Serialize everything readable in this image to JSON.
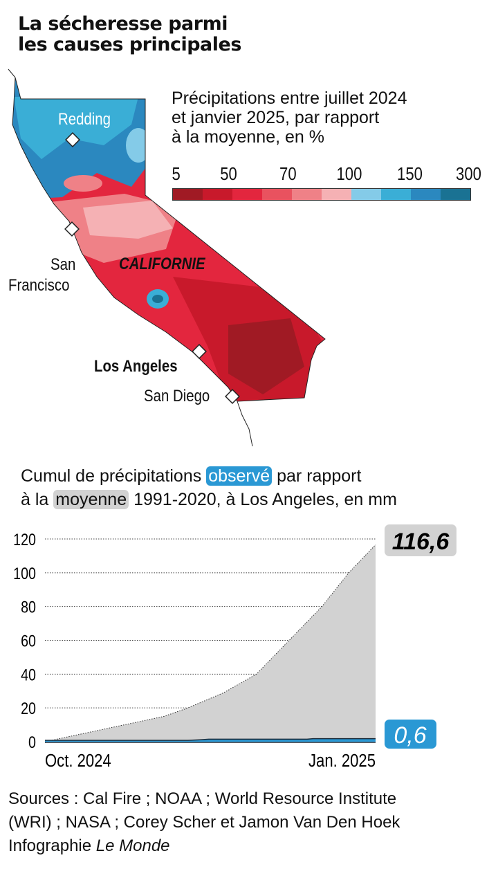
{
  "title": [
    "La sécheresse parmi",
    "les causes principales"
  ],
  "map": {
    "legend_title": [
      "Précipitations entre juillet 2024",
      "et janvier 2025, par rapport",
      "à la moyenne, en %"
    ],
    "legend_ticks": [
      "5",
      "50",
      "70",
      "100",
      "150",
      "300"
    ],
    "legend_colors": [
      "#a01a24",
      "#c8192b",
      "#e3263e",
      "#e9525f",
      "#ef8187",
      "#f5b1b4",
      "#84cbe8",
      "#3aaed6",
      "#2b88bf",
      "#1a7293"
    ],
    "region_label": "CALIFORNIE",
    "cities": {
      "redding": "Redding",
      "san_francisco": [
        "San",
        "Francisco"
      ],
      "los_angeles": "Los Angeles",
      "san_diego": "San Diego"
    }
  },
  "chart_heading": {
    "line1_a": "Cumul de précipitations",
    "line1_highlight": "observé",
    "line1_b": "par rapport",
    "line2_a": "à la",
    "line2_highlight": "moyenne",
    "line2_b": "1991-2020, à Los Angeles, en mm"
  },
  "chart_data": {
    "type": "area",
    "ylim": [
      0,
      120
    ],
    "yticks": [
      "0",
      "20",
      "40",
      "60",
      "80",
      "100",
      "120"
    ],
    "xtick_labels": [
      "Oct. 2024",
      "Jan. 2025"
    ],
    "grid": true,
    "colors": {
      "moyenne": "#d2d2d2",
      "observe": "#2a98d4"
    },
    "series": [
      {
        "name": "moyenne",
        "x": [
          "2024-10-01",
          "2024-11-10",
          "2024-11-18",
          "2024-11-30",
          "2024-12-11",
          "2024-12-22",
          "2025-01-02",
          "2025-01-11",
          "2025-01-20"
        ],
        "values": [
          0,
          15,
          20,
          29,
          40,
          60,
          80,
          100,
          116.6
        ]
      },
      {
        "name": "observé",
        "x": [
          "2024-10-01",
          "2024-11-18",
          "2024-11-22",
          "2024-11-25",
          "2024-12-28",
          "2024-12-30",
          "2025-01-20"
        ],
        "values": [
          0,
          0,
          0.2,
          0.4,
          0.4,
          0.6,
          0.6
        ]
      }
    ],
    "end_labels": {
      "moyenne": "116,6",
      "observe": "0,6"
    }
  },
  "sources": {
    "line1": "Sources : Cal Fire ; NOAA ; World Resource Institute",
    "line2": "(WRI) ; NASA ; Corey Scher et Jamon Van Den Hoek",
    "credit_a": "Infographie",
    "credit_b": "Le Monde"
  }
}
